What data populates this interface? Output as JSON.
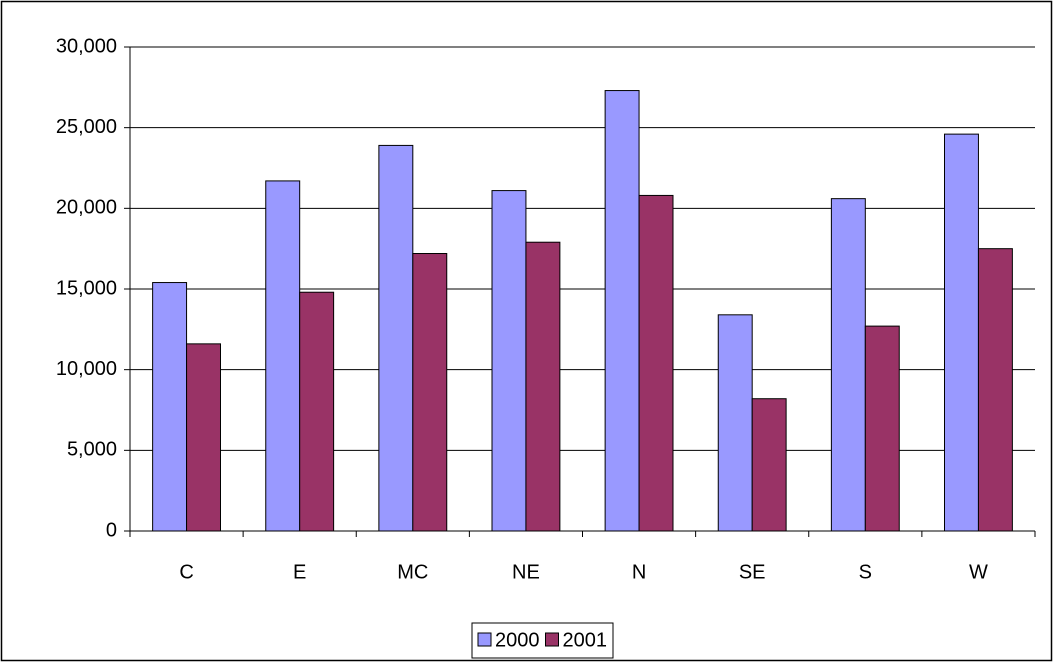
{
  "chart_data": {
    "type": "bar",
    "categories": [
      "C",
      "E",
      "MC",
      "NE",
      "N",
      "SE",
      "S",
      "W"
    ],
    "series": [
      {
        "name": "2000",
        "color": "#9999ff",
        "values": [
          15400,
          21700,
          23900,
          21100,
          27300,
          13400,
          20600,
          24600
        ]
      },
      {
        "name": "2001",
        "color": "#993366",
        "values": [
          11600,
          14800,
          17200,
          17900,
          20800,
          8200,
          12700,
          17500
        ]
      }
    ],
    "ylim": [
      0,
      30000
    ],
    "yticks": [
      0,
      {
        "value": 5000,
        "label": "5,000"
      },
      {
        "value": 10000,
        "label": "10,000"
      },
      {
        "value": 15000,
        "label": "15,000"
      },
      {
        "value": 20000,
        "label": "20,000"
      },
      {
        "value": 25000,
        "label": "25,000"
      },
      {
        "value": 30000,
        "label": "30,000"
      }
    ],
    "grid": true,
    "legend": "bottom"
  }
}
